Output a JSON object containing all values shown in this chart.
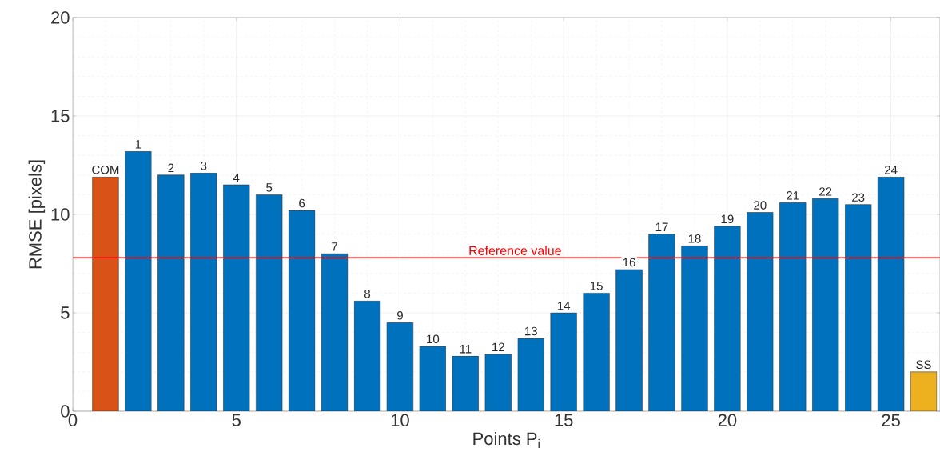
{
  "chart_data": {
    "type": "bar",
    "x": [
      1,
      2,
      3,
      4,
      5,
      6,
      7,
      8,
      9,
      10,
      11,
      12,
      13,
      14,
      15,
      16,
      17,
      18,
      19,
      20,
      21,
      22,
      23,
      24,
      25,
      26
    ],
    "values": [
      11.9,
      13.2,
      12.0,
      12.1,
      11.5,
      11.0,
      10.2,
      8.0,
      5.6,
      4.5,
      3.3,
      2.8,
      2.9,
      3.7,
      5.0,
      6.0,
      7.2,
      9.0,
      8.4,
      9.4,
      10.1,
      10.6,
      10.8,
      10.5,
      11.9,
      2.0
    ],
    "colors": [
      "#d95319",
      "#0072bd",
      "#0072bd",
      "#0072bd",
      "#0072bd",
      "#0072bd",
      "#0072bd",
      "#0072bd",
      "#0072bd",
      "#0072bd",
      "#0072bd",
      "#0072bd",
      "#0072bd",
      "#0072bd",
      "#0072bd",
      "#0072bd",
      "#0072bd",
      "#0072bd",
      "#0072bd",
      "#0072bd",
      "#0072bd",
      "#0072bd",
      "#0072bd",
      "#0072bd",
      "#0072bd",
      "#edb120"
    ],
    "xlabel": "Points P$_{i}$",
    "ylabel": "RMSE [pixels]",
    "xlim": [
      0,
      26.5
    ],
    "ylim": [
      0,
      20
    ],
    "xticks": [
      0,
      5,
      10,
      15,
      20,
      25
    ],
    "yticks": [
      0,
      5,
      10,
      15,
      20
    ],
    "grid": true,
    "ref_lines": [
      {
        "axis": "y",
        "value": 7.8,
        "label": "Reference value",
        "color": "#ff0000"
      }
    ],
    "annotations": [
      {
        "text": "COM",
        "x": 1,
        "y": 11.9
      },
      {
        "text": "1",
        "x": 2,
        "y": 13.2
      },
      {
        "text": "2",
        "x": 3,
        "y": 12.0
      },
      {
        "text": "3",
        "x": 4,
        "y": 12.1
      },
      {
        "text": "4",
        "x": 5,
        "y": 11.5
      },
      {
        "text": "5",
        "x": 6,
        "y": 11.0
      },
      {
        "text": "6",
        "x": 7,
        "y": 10.2
      },
      {
        "text": "7",
        "x": 8,
        "y": 8.0
      },
      {
        "text": "8",
        "x": 9,
        "y": 5.6
      },
      {
        "text": "9",
        "x": 10,
        "y": 4.5
      },
      {
        "text": "10",
        "x": 11,
        "y": 3.3
      },
      {
        "text": "11",
        "x": 12,
        "y": 2.8
      },
      {
        "text": "12",
        "x": 13,
        "y": 2.9
      },
      {
        "text": "13",
        "x": 14,
        "y": 3.7
      },
      {
        "text": "14",
        "x": 15,
        "y": 5.0
      },
      {
        "text": "15",
        "x": 16,
        "y": 6.0
      },
      {
        "text": "16",
        "x": 17,
        "y": 7.2
      },
      {
        "text": "17",
        "x": 18,
        "y": 9.0
      },
      {
        "text": "18",
        "x": 19,
        "y": 8.4
      },
      {
        "text": "19",
        "x": 20,
        "y": 9.4
      },
      {
        "text": "20",
        "x": 21,
        "y": 10.1
      },
      {
        "text": "21",
        "x": 22,
        "y": 10.6
      },
      {
        "text": "22",
        "x": 23,
        "y": 10.8
      },
      {
        "text": "23",
        "x": 24,
        "y": 10.5
      },
      {
        "text": "24",
        "x": 25,
        "y": 11.9
      },
      {
        "text": "SS",
        "x": 26,
        "y": 2.0
      }
    ]
  }
}
